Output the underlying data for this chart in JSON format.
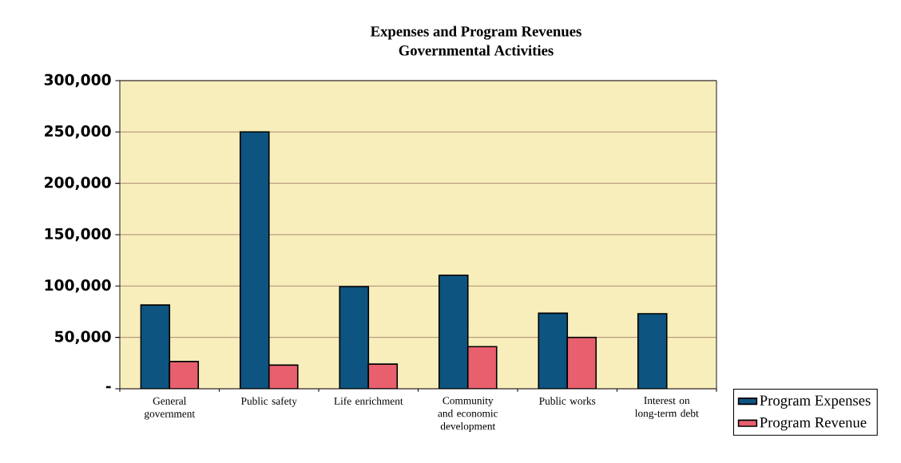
{
  "chart_data": {
    "type": "bar",
    "title": "Expenses and Program Revenues",
    "subtitle": "Governmental Activities",
    "categories": [
      "General government",
      "Public safety",
      "Life enrichment",
      "Community and economic development",
      "Public works",
      "Interest on long-term debt"
    ],
    "series": [
      {
        "name": "Program Expenses",
        "color": "#0d5480",
        "values": [
          81500,
          250000,
          99500,
          110500,
          73500,
          73000
        ]
      },
      {
        "name": "Program Revenue",
        "color": "#e8606e",
        "values": [
          26500,
          23000,
          24000,
          41000,
          50000,
          null
        ]
      }
    ],
    "ylim": [
      0,
      300000
    ],
    "yticks": [
      {
        "value": 0,
        "label": "-"
      },
      {
        "value": 50000,
        "label": "50,000"
      },
      {
        "value": 100000,
        "label": "100,000"
      },
      {
        "value": 150000,
        "label": "150,000"
      },
      {
        "value": 200000,
        "label": "200,000"
      },
      {
        "value": 250000,
        "label": "250,000"
      },
      {
        "value": 300000,
        "label": "300,000"
      }
    ],
    "grid": "y",
    "legend": "bottom right"
  }
}
